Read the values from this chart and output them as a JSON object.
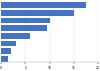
{
  "values": [
    17500,
    15000,
    10000,
    9500,
    6000,
    3000,
    2000,
    1500
  ],
  "bar_color": "#4472c4",
  "background_color": "#ffffff",
  "xlim": [
    0,
    20000
  ],
  "bar_height": 0.75,
  "figsize": [
    1.0,
    0.71
  ],
  "dpi": 100
}
